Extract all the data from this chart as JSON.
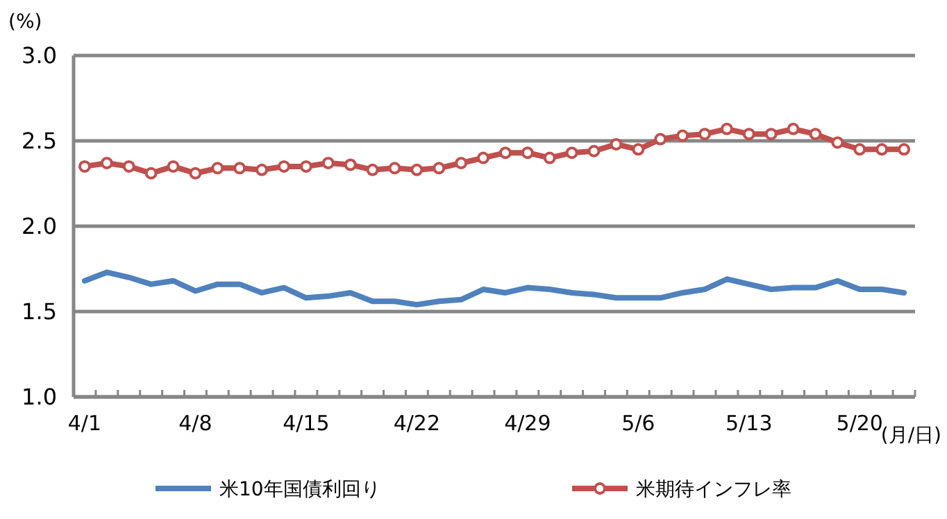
{
  "chart_data": {
    "type": "line",
    "ylabel": "(%)",
    "xlabel": "(月/日)",
    "ylim": [
      1.0,
      3.0
    ],
    "yticks": [
      {
        "value": 1.0,
        "label": "1.0"
      },
      {
        "value": 1.5,
        "label": "1.5"
      },
      {
        "value": 2.0,
        "label": "2.0"
      },
      {
        "value": 2.5,
        "label": "2.5"
      },
      {
        "value": 3.0,
        "label": "3.0"
      }
    ],
    "grid": "y",
    "legend": "bottom",
    "line_style": "solid",
    "categories": [
      "4/1",
      null,
      null,
      null,
      null,
      "4/8",
      null,
      null,
      null,
      null,
      "4/15",
      null,
      null,
      null,
      null,
      "4/22",
      null,
      null,
      null,
      null,
      "4/29",
      null,
      null,
      null,
      null,
      "5/6",
      null,
      null,
      null,
      null,
      "5/13",
      null,
      null,
      null,
      null,
      "5/20",
      null,
      null
    ],
    "series": [
      {
        "name": "米10年国債利回り",
        "color": "#4f81bd",
        "marker": "none",
        "values": [
          1.68,
          1.73,
          1.7,
          1.66,
          1.68,
          1.62,
          1.66,
          1.66,
          1.61,
          1.64,
          1.58,
          1.59,
          1.61,
          1.56,
          1.56,
          1.54,
          1.56,
          1.57,
          1.63,
          1.61,
          1.64,
          1.63,
          1.61,
          1.6,
          1.58,
          1.58,
          1.58,
          1.61,
          1.63,
          1.69,
          1.66,
          1.63,
          1.64,
          1.64,
          1.68,
          1.63,
          1.63,
          1.61
        ]
      },
      {
        "name": "米期待インフレ率",
        "color": "#c0504d",
        "marker": "circle",
        "values": [
          2.35,
          2.37,
          2.35,
          2.31,
          2.35,
          2.31,
          2.34,
          2.34,
          2.33,
          2.35,
          2.35,
          2.37,
          2.36,
          2.33,
          2.34,
          2.33,
          2.34,
          2.37,
          2.4,
          2.43,
          2.43,
          2.4,
          2.43,
          2.44,
          2.48,
          2.45,
          2.51,
          2.53,
          2.54,
          2.57,
          2.54,
          2.54,
          2.57,
          2.54,
          2.49,
          2.45,
          2.45,
          2.45
        ]
      }
    ]
  }
}
